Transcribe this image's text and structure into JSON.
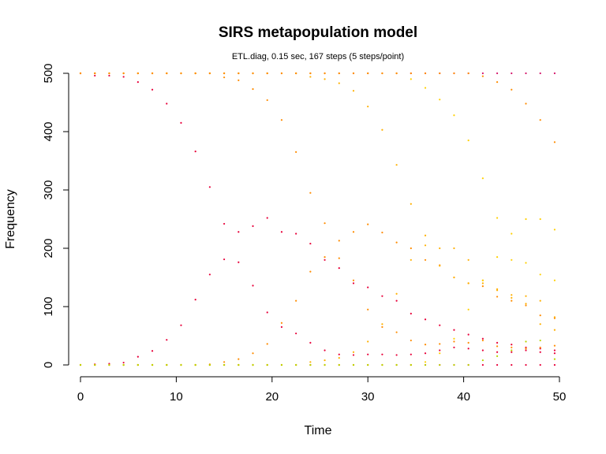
{
  "chart_data": {
    "type": "scatter",
    "title": "SIRS metapopulation model",
    "subtitle": "ETL.diag, 0.15 sec, 167 steps (5 steps/point)",
    "xlabel": "Time",
    "ylabel": "Frequency",
    "xlim": [
      0,
      50
    ],
    "ylim": [
      0,
      500
    ],
    "xticks": [
      0,
      10,
      20,
      30,
      40,
      50
    ],
    "yticks": [
      0,
      100,
      200,
      300,
      400,
      500
    ],
    "grid": false,
    "legend": "none",
    "x": [
      0,
      1.5,
      3,
      4.5,
      6,
      7.5,
      9,
      10.5,
      12,
      13.5,
      15,
      16.5,
      18,
      19.5,
      21,
      22.5,
      24,
      25.5,
      27,
      28.5,
      30,
      31.5,
      33,
      34.5,
      36,
      37.5,
      39,
      40.5,
      42,
      43.5,
      45,
      46.5,
      48,
      49.5
    ],
    "series": [
      {
        "color": "#e8003a",
        "values": [
          500,
          496,
          496,
          494,
          485,
          472,
          448,
          415,
          366,
          305,
          242,
          228,
          238,
          252,
          228,
          225,
          208,
          180,
          166,
          140,
          133,
          118,
          110,
          88,
          78,
          68,
          60,
          52,
          45,
          38,
          35,
          30,
          28,
          25
        ]
      },
      {
        "color": "#e8003a",
        "values": [
          0,
          1,
          2,
          4,
          14,
          24,
          43,
          68,
          112,
          155,
          181,
          176,
          136,
          90,
          65,
          54,
          38,
          25,
          18,
          17,
          18,
          18,
          17,
          18,
          20,
          25,
          30,
          28,
          25,
          22,
          22,
          25,
          22,
          20
        ]
      },
      {
        "color": "#e8003a",
        "values": [
          0,
          0,
          0,
          0,
          0,
          0,
          0,
          0,
          0,
          0,
          0,
          0,
          0,
          0,
          0,
          0,
          0,
          0,
          0,
          0,
          0,
          0,
          0,
          0,
          0,
          0,
          0,
          0,
          0,
          0,
          0,
          0,
          0,
          0
        ]
      },
      {
        "color": "#d4146a",
        "values": [
          500,
          500,
          500,
          500,
          500,
          500,
          500,
          500,
          500,
          500,
          500,
          500,
          500,
          500,
          500,
          500,
          500,
          500,
          500,
          500,
          500,
          500,
          500,
          500,
          500,
          500,
          500,
          500,
          500,
          500,
          500,
          500,
          500,
          500
        ]
      },
      {
        "color": "#ff8c00",
        "values": [
          500,
          500,
          500,
          500,
          500,
          500,
          500,
          500,
          500,
          500,
          493,
          488,
          473,
          454,
          420,
          365,
          295,
          243,
          213,
          228,
          241,
          227,
          210,
          200,
          180,
          171,
          150,
          140,
          135,
          117,
          110,
          102,
          85,
          80
        ]
      },
      {
        "color": "#ff8c00",
        "values": [
          0,
          0,
          0,
          0,
          0,
          0,
          0,
          0,
          0,
          1,
          5,
          10,
          20,
          36,
          72,
          110,
          160,
          185,
          183,
          145,
          95,
          65,
          56,
          42,
          35,
          36,
          40,
          38,
          42,
          32,
          30,
          28,
          30,
          33
        ]
      },
      {
        "color": "#ffb000",
        "values": [
          500,
          500,
          500,
          500,
          500,
          500,
          500,
          500,
          500,
          500,
          500,
          500,
          500,
          500,
          500,
          500,
          494,
          490,
          483,
          470,
          443,
          403,
          343,
          276,
          222,
          170,
          150,
          140,
          140,
          130,
          120,
          118,
          110,
          82
        ]
      },
      {
        "color": "#ffb000",
        "values": [
          0,
          0,
          0,
          0,
          0,
          0,
          0,
          0,
          0,
          0,
          0,
          0,
          0,
          0,
          0,
          0,
          5,
          8,
          12,
          22,
          40,
          70,
          122,
          180,
          205,
          200,
          200,
          180,
          145,
          128,
          115,
          105,
          70,
          60
        ]
      },
      {
        "color": "#ffd000",
        "values": [
          500,
          500,
          500,
          500,
          500,
          500,
          500,
          500,
          500,
          500,
          500,
          500,
          500,
          500,
          500,
          500,
          500,
          500,
          500,
          500,
          500,
          500,
          500,
          490,
          475,
          455,
          428,
          385,
          320,
          252,
          225,
          250,
          250,
          232
        ]
      },
      {
        "color": "#ffd000",
        "values": [
          0,
          0,
          0,
          0,
          0,
          0,
          0,
          0,
          0,
          0,
          0,
          0,
          0,
          0,
          0,
          0,
          0,
          0,
          0,
          0,
          0,
          0,
          0,
          0,
          5,
          20,
          45,
          95,
          145,
          185,
          180,
          175,
          155,
          145
        ]
      },
      {
        "color": "#b8d400",
        "values": [
          0,
          0,
          0,
          0,
          0,
          0,
          0,
          0,
          0,
          0,
          0,
          0,
          0,
          0,
          0,
          0,
          0,
          0,
          0,
          0,
          0,
          0,
          0,
          0,
          0,
          0,
          0,
          0,
          8,
          15,
          25,
          40,
          42,
          10
        ]
      },
      {
        "color": "#ff8c00",
        "values": [
          500,
          500,
          500,
          500,
          500,
          500,
          500,
          500,
          500,
          500,
          500,
          500,
          500,
          500,
          500,
          500,
          500,
          500,
          500,
          500,
          500,
          500,
          500,
          500,
          500,
          500,
          500,
          500,
          495,
          485,
          472,
          448,
          420,
          382
        ]
      }
    ]
  }
}
